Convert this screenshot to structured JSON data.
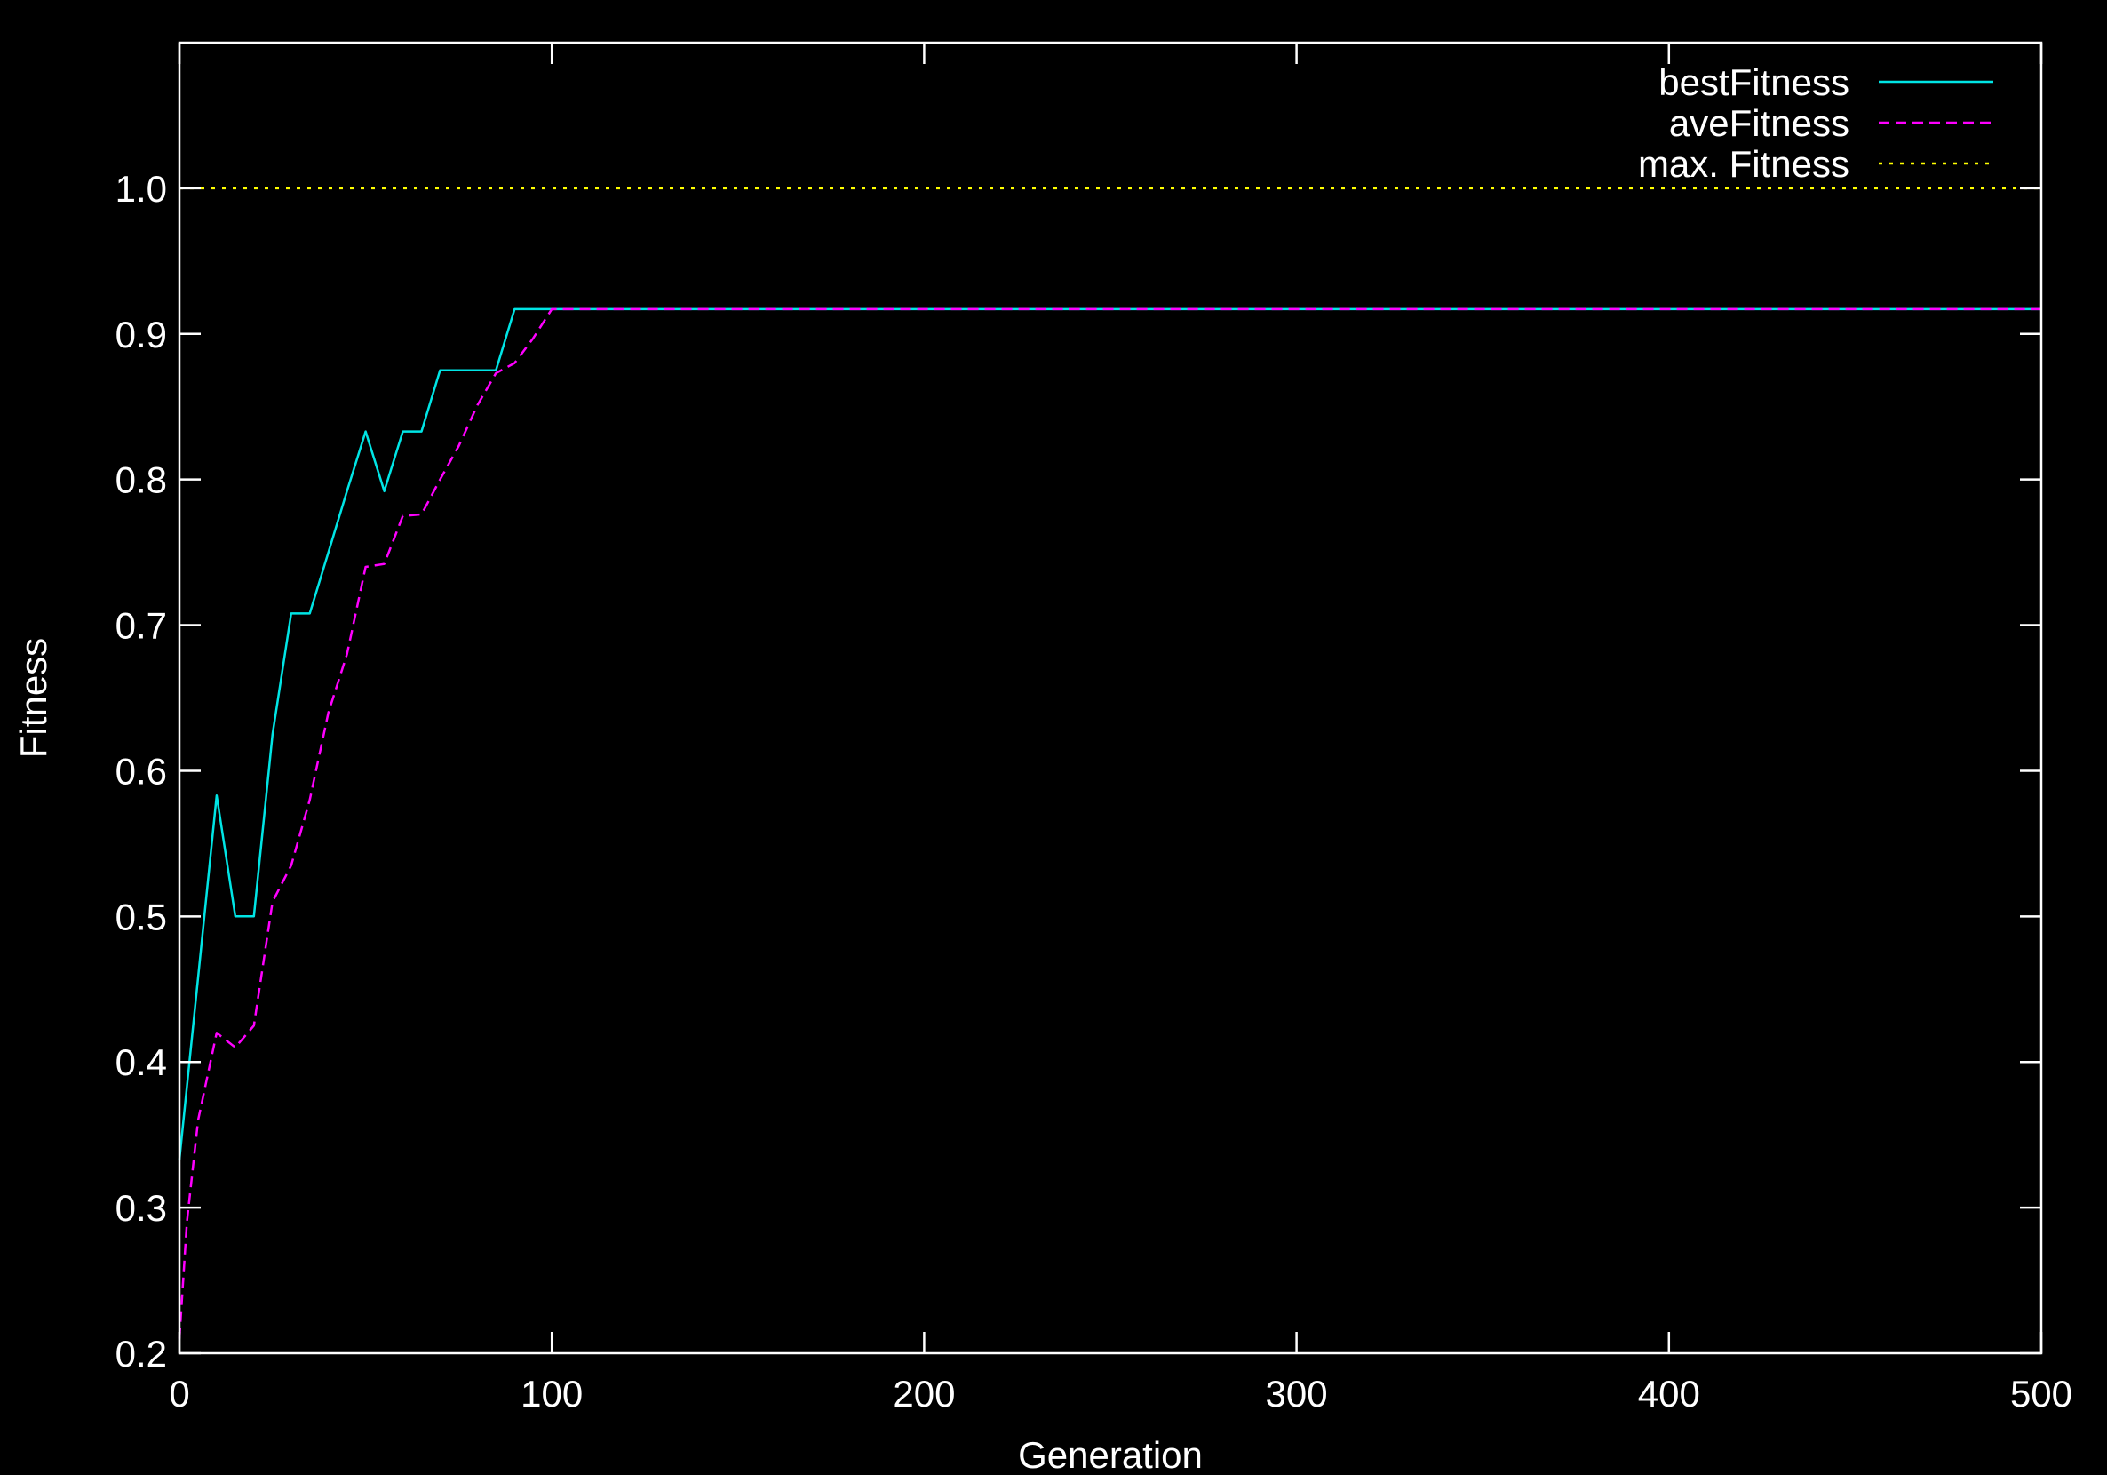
{
  "chart_data": {
    "type": "line",
    "title": "",
    "xlabel": "Generation",
    "ylabel": "Fitness",
    "xlim": [
      0,
      500
    ],
    "ylim": [
      0.2,
      1.1
    ],
    "x_ticks": [
      0,
      100,
      200,
      300,
      400,
      500
    ],
    "x_tick_labels": [
      "0",
      "100",
      "200",
      "300",
      "400",
      "500"
    ],
    "y_ticks": [
      0.2,
      0.3,
      0.4,
      0.5,
      0.6,
      0.7,
      0.8,
      0.9,
      1.0
    ],
    "y_tick_labels": [
      "0.2",
      "0.3",
      "0.4",
      "0.5",
      "0.6",
      "0.7",
      "0.8",
      "0.9",
      "1.0"
    ],
    "grid": false,
    "legend_position": "top-right",
    "background": "#000000",
    "axis_color": "#ffffff",
    "series": [
      {
        "name": "bestFitness",
        "color": "#00e5e5",
        "style": "solid",
        "x": [
          0,
          5,
          10,
          15,
          20,
          25,
          30,
          35,
          40,
          45,
          50,
          55,
          60,
          65,
          70,
          75,
          80,
          85,
          90,
          95,
          100,
          500
        ],
        "y": [
          0.333,
          0.458,
          0.583,
          0.5,
          0.5,
          0.625,
          0.708,
          0.708,
          0.75,
          0.792,
          0.833,
          0.792,
          0.833,
          0.833,
          0.875,
          0.875,
          0.875,
          0.875,
          0.917,
          0.917,
          0.917,
          0.917
        ]
      },
      {
        "name": "aveFitness",
        "color": "#ff00ff",
        "style": "dashed",
        "x": [
          0,
          2,
          5,
          10,
          15,
          20,
          25,
          30,
          35,
          40,
          45,
          50,
          55,
          60,
          65,
          70,
          75,
          80,
          85,
          90,
          95,
          100,
          500
        ],
        "y": [
          0.21,
          0.29,
          0.36,
          0.42,
          0.41,
          0.425,
          0.51,
          0.535,
          0.58,
          0.64,
          0.68,
          0.74,
          0.742,
          0.775,
          0.776,
          0.8,
          0.823,
          0.851,
          0.873,
          0.88,
          0.897,
          0.917,
          0.917
        ]
      },
      {
        "name": "max. Fitness",
        "color": "#ffff00",
        "style": "dotted",
        "x": [
          0,
          500
        ],
        "y": [
          1.0,
          1.0
        ]
      }
    ]
  }
}
